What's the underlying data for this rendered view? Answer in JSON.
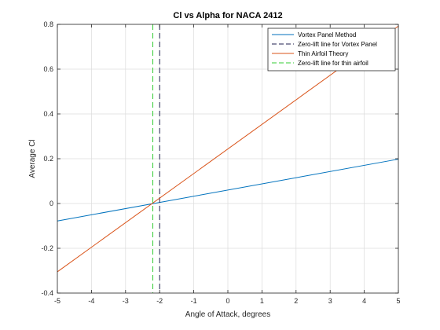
{
  "chart_data": {
    "type": "line",
    "title": "Cl vs Alpha for NACA 2412",
    "xlabel": "Angle of Attack, degrees",
    "ylabel": "Average Cl",
    "xlim": [
      -5,
      5
    ],
    "ylim": [
      -0.4,
      0.8
    ],
    "xticks": [
      -5,
      -4,
      -3,
      -2,
      -1,
      0,
      1,
      2,
      3,
      4,
      5
    ],
    "yticks": [
      -0.4,
      -0.2,
      0,
      0.2,
      0.4,
      0.6,
      0.8
    ],
    "grid": true,
    "legend_position": "top-right",
    "series": [
      {
        "name": "Vortex Panel Method",
        "kind": "line",
        "style": "solid",
        "color": "#0072BD",
        "x": [
          -5,
          5
        ],
        "y": [
          -0.078,
          0.198
        ]
      },
      {
        "name": "Zero-lift line for Vortex Panel",
        "kind": "vline",
        "style": "dashed",
        "color": "#1f1f4f",
        "x_value": -2.0
      },
      {
        "name": "Thin Airfoil Theory",
        "kind": "line",
        "style": "solid",
        "color": "#D95319",
        "x": [
          -5,
          5
        ],
        "y": [
          -0.305,
          0.792
        ]
      },
      {
        "name": "Zero-lift line for thin airfoil",
        "kind": "vline",
        "style": "dashed",
        "color": "#33cc33",
        "x_value": -2.2
      }
    ]
  }
}
